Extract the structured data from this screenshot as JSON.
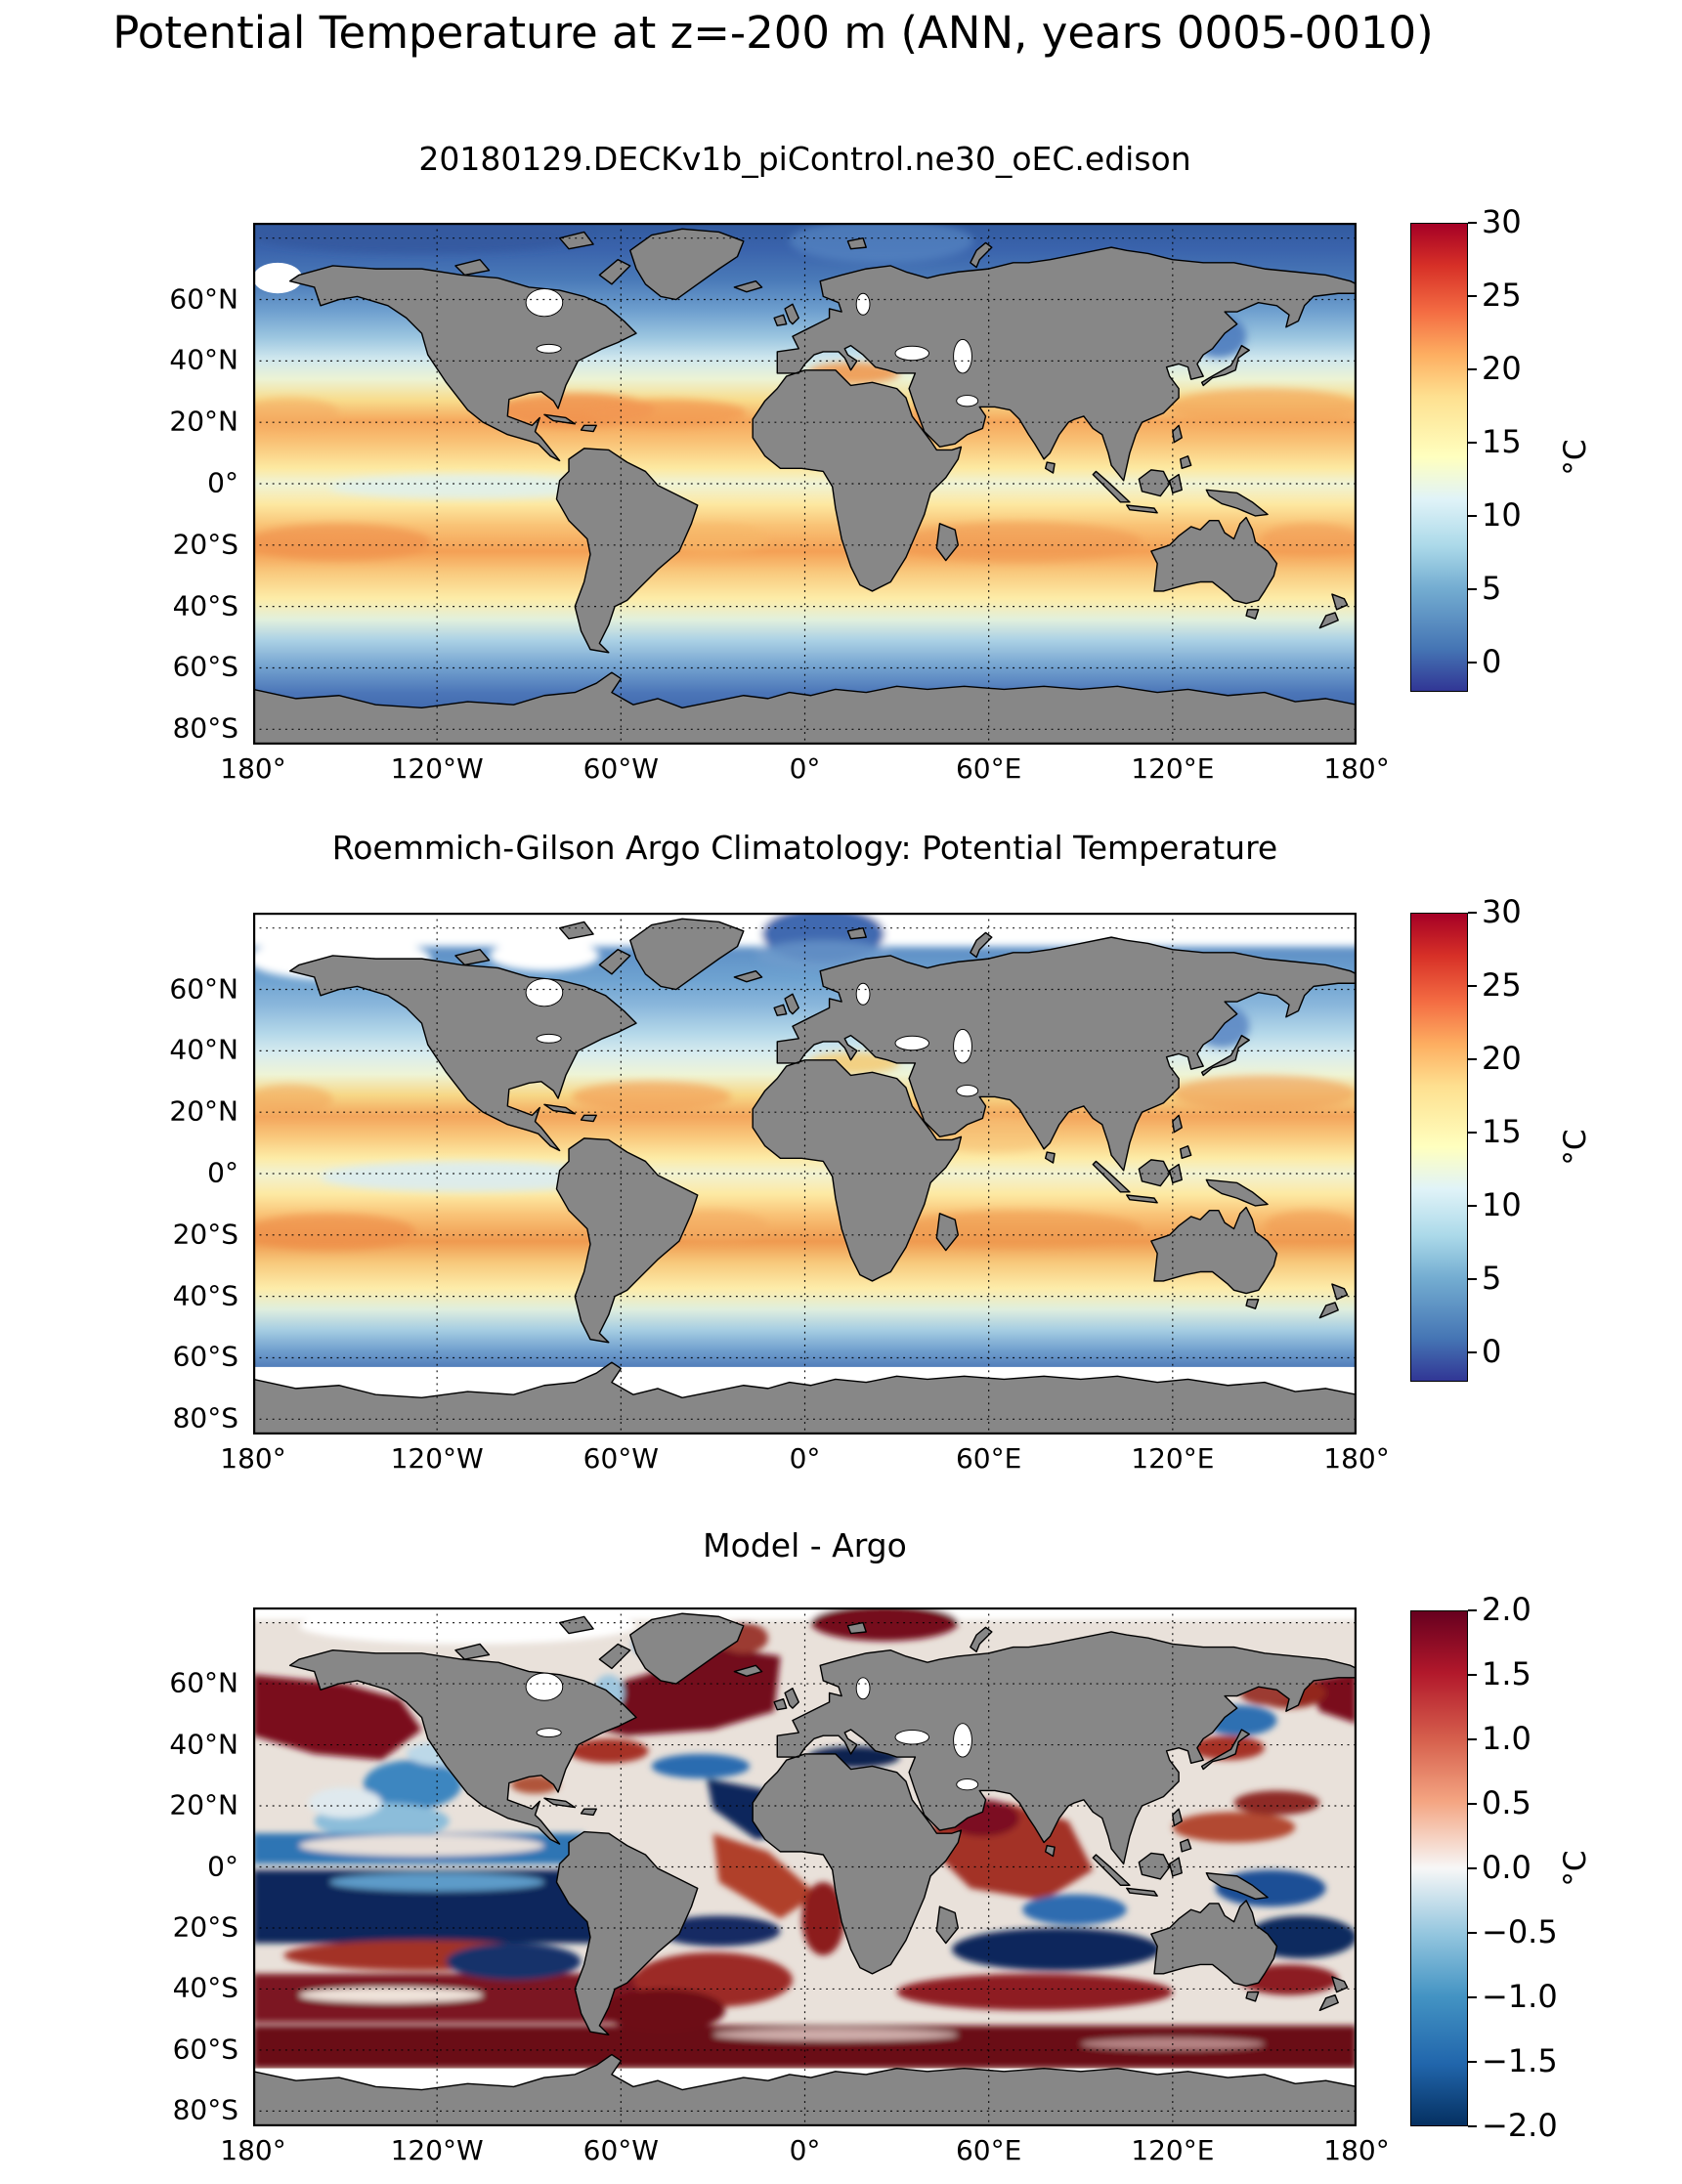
{
  "figure": {
    "title": "Potential Temperature at z=-200 m (ANN, years 0005-0010)"
  },
  "axes": {
    "lat_ticks": [
      "60°N",
      "40°N",
      "20°N",
      "0°",
      "20°S",
      "40°S",
      "60°S",
      "80°S"
    ],
    "lon_ticks": [
      "180°",
      "120°W",
      "60°W",
      "0°",
      "60°E",
      "120°E",
      "180°"
    ]
  },
  "land_color": "#878787",
  "panels": [
    {
      "id": "model",
      "title": "20180129.DECKv1b_piControl.ne30_oEC.edison",
      "colorbar": {
        "unit": "°C",
        "vmin": -2,
        "vmax": 30,
        "ticks": [
          {
            "label": "30",
            "value": 30
          },
          {
            "label": "25",
            "value": 25
          },
          {
            "label": "20",
            "value": 20
          },
          {
            "label": "15",
            "value": 15
          },
          {
            "label": "10",
            "value": 10
          },
          {
            "label": "5",
            "value": 5
          },
          {
            "label": "0",
            "value": 0
          }
        ],
        "gradient": [
          {
            "p": 0,
            "c": "#a50026"
          },
          {
            "p": 9,
            "c": "#d73027"
          },
          {
            "p": 19,
            "c": "#f46d43"
          },
          {
            "p": 28,
            "c": "#fdae61"
          },
          {
            "p": 37,
            "c": "#fee090"
          },
          {
            "p": 50,
            "c": "#ffffbf"
          },
          {
            "p": 59,
            "c": "#e0f3f8"
          },
          {
            "p": 69,
            "c": "#abd9e9"
          },
          {
            "p": 78,
            "c": "#74add1"
          },
          {
            "p": 91,
            "c": "#4575b4"
          },
          {
            "p": 100,
            "c": "#313695"
          }
        ]
      }
    },
    {
      "id": "argo",
      "title": "Roemmich-Gilson Argo Climatology: Potential Temperature",
      "colorbar": {
        "unit": "°C",
        "vmin": -2,
        "vmax": 30,
        "ticks": [
          {
            "label": "30",
            "value": 30
          },
          {
            "label": "25",
            "value": 25
          },
          {
            "label": "20",
            "value": 20
          },
          {
            "label": "15",
            "value": 15
          },
          {
            "label": "10",
            "value": 10
          },
          {
            "label": "5",
            "value": 5
          },
          {
            "label": "0",
            "value": 0
          }
        ],
        "gradient": [
          {
            "p": 0,
            "c": "#a50026"
          },
          {
            "p": 9,
            "c": "#d73027"
          },
          {
            "p": 19,
            "c": "#f46d43"
          },
          {
            "p": 28,
            "c": "#fdae61"
          },
          {
            "p": 37,
            "c": "#fee090"
          },
          {
            "p": 50,
            "c": "#ffffbf"
          },
          {
            "p": 59,
            "c": "#e0f3f8"
          },
          {
            "p": 69,
            "c": "#abd9e9"
          },
          {
            "p": 78,
            "c": "#74add1"
          },
          {
            "p": 91,
            "c": "#4575b4"
          },
          {
            "p": 100,
            "c": "#313695"
          }
        ]
      }
    },
    {
      "id": "diff",
      "title": "Model - Argo",
      "colorbar": {
        "unit": "°C",
        "vmin": -2,
        "vmax": 2,
        "ticks": [
          {
            "label": "2.0",
            "value": 2
          },
          {
            "label": "1.5",
            "value": 1.5
          },
          {
            "label": "1.0",
            "value": 1
          },
          {
            "label": "0.5",
            "value": 0.5
          },
          {
            "label": "0.0",
            "value": 0
          },
          {
            "label": "−0.5",
            "value": -0.5
          },
          {
            "label": "−1.0",
            "value": -1
          },
          {
            "label": "−1.5",
            "value": -1.5
          },
          {
            "label": "−2.0",
            "value": -2
          }
        ],
        "gradient": [
          {
            "p": 0,
            "c": "#67001f"
          },
          {
            "p": 12,
            "c": "#b2182b"
          },
          {
            "p": 25,
            "c": "#d6604d"
          },
          {
            "p": 37,
            "c": "#f4a582"
          },
          {
            "p": 50,
            "c": "#f7f7f7"
          },
          {
            "p": 63,
            "c": "#92c5de"
          },
          {
            "p": 75,
            "c": "#4393c3"
          },
          {
            "p": 88,
            "c": "#2166ac"
          },
          {
            "p": 100,
            "c": "#053061"
          }
        ]
      }
    }
  ],
  "chart_data": [
    {
      "type": "heatmap",
      "projection": "equirectangular world map",
      "title": "20180129.DECKv1b_piControl.ne30_oEC.edison",
      "variable": "Potential Temperature at z=-200 m (ANN, years 0005-0010)",
      "colormap": "RdYlBu_r",
      "vmin": -2,
      "vmax": 30,
      "unit": "°C",
      "colorbar_ticks": [
        0,
        5,
        10,
        15,
        20,
        25,
        30
      ],
      "lon_ticks_deg": [
        -180,
        -120,
        -60,
        0,
        60,
        120,
        180
      ],
      "lat_ticks_deg": [
        60,
        40,
        20,
        0,
        -20,
        -40,
        -60,
        -80
      ],
      "zonal_mean_estimate_degC": {
        "lat": [
          75,
          60,
          45,
          30,
          22,
          10,
          0,
          -10,
          -22,
          -35,
          -50,
          -65
        ],
        "value": [
          1,
          4,
          9,
          15,
          20,
          14,
          13,
          15,
          19,
          14,
          7,
          2
        ]
      }
    },
    {
      "type": "heatmap",
      "projection": "equirectangular world map",
      "title": "Roemmich-Gilson Argo Climatology: Potential Temperature",
      "variable": "Potential Temperature at z=-200 m",
      "colormap": "RdYlBu_r",
      "vmin": -2,
      "vmax": 30,
      "unit": "°C",
      "colorbar_ticks": [
        0,
        5,
        10,
        15,
        20,
        25,
        30
      ],
      "lon_ticks_deg": [
        -180,
        -120,
        -60,
        0,
        60,
        120,
        180
      ],
      "lat_ticks_deg": [
        60,
        40,
        20,
        0,
        -20,
        -40,
        -60,
        -80
      ],
      "no_data_shown_white": [
        "high Arctic",
        "Southern Ocean south of ~63°S",
        "marginal seas"
      ],
      "zonal_mean_estimate_degC": {
        "lat": [
          75,
          60,
          45,
          30,
          22,
          10,
          0,
          -10,
          -22,
          -35,
          -50,
          -65
        ],
        "value": [
          null,
          5,
          10,
          15,
          19,
          14,
          13,
          15,
          18,
          14,
          7,
          2
        ]
      }
    },
    {
      "type": "heatmap",
      "projection": "equirectangular world map",
      "title": "Model - Argo",
      "variable": "Potential temperature difference at z=-200 m",
      "colormap": "RdBu_r",
      "vmin": -2,
      "vmax": 2,
      "unit": "°C",
      "colorbar_ticks": [
        -2,
        -1.5,
        -1,
        -0.5,
        0,
        0.5,
        1,
        1.5,
        2
      ],
      "lon_ticks_deg": [
        -180,
        -120,
        -60,
        0,
        60,
        120,
        180
      ],
      "lat_ticks_deg": [
        60,
        40,
        20,
        0,
        -20,
        -40,
        -60,
        -80
      ],
      "zonal_mean_bias_estimate_degC": {
        "lat": [
          65,
          50,
          35,
          20,
          5,
          -10,
          -25,
          -45,
          -60
        ],
        "value": [
          1.5,
          1.8,
          -0.5,
          -0.5,
          -1.0,
          0.5,
          -1.2,
          1.5,
          2.0
        ]
      }
    }
  ]
}
